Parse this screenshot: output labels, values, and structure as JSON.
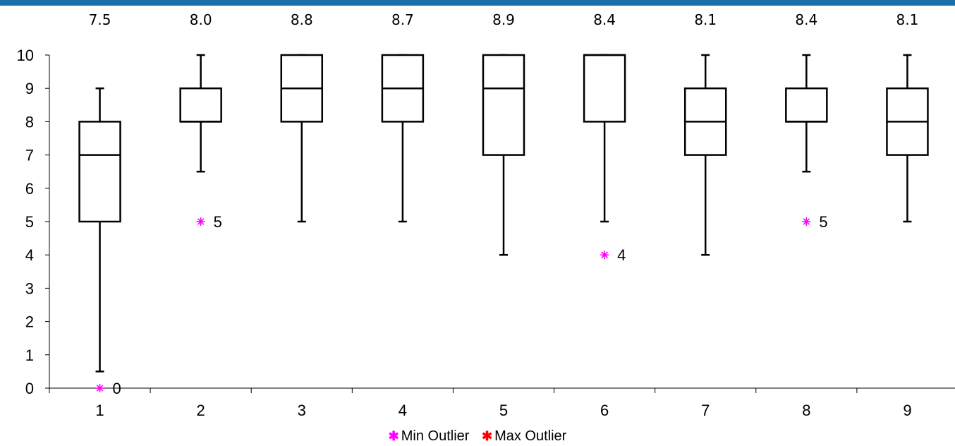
{
  "colors": {
    "top_bar": "#1b6fa8",
    "min_outlier": "#ff00ff",
    "max_outlier": "#ff0000",
    "box_stroke": "#000000"
  },
  "chart_data": {
    "type": "boxplot",
    "title": "",
    "xlabel": "",
    "ylabel": "",
    "ylim": [
      0,
      10
    ],
    "y_ticks": [
      "0",
      "1",
      "2",
      "3",
      "4",
      "5",
      "6",
      "7",
      "8",
      "9",
      "10"
    ],
    "grid": false,
    "legend_placement": "bottom",
    "legend": [
      {
        "label": "Min Outlier",
        "marker": "*",
        "color": "#ff00ff"
      },
      {
        "label": "Max Outlier",
        "marker": "*",
        "color": "#ff0000"
      }
    ],
    "categories": [
      "1",
      "2",
      "3",
      "4",
      "5",
      "6",
      "7",
      "8",
      "9"
    ],
    "means": [
      "7.5",
      "8.0",
      "8.8",
      "8.7",
      "8.9",
      "8.4",
      "8.1",
      "8.4",
      "8.1"
    ],
    "boxes": [
      {
        "category": "1",
        "whisker_low": 0.5,
        "q1": 5,
        "median": 7,
        "q3": 8,
        "whisker_high": 9
      },
      {
        "category": "2",
        "whisker_low": 6.5,
        "q1": 8,
        "median": 8,
        "q3": 9,
        "whisker_high": 10
      },
      {
        "category": "3",
        "whisker_low": 5,
        "q1": 8,
        "median": 9,
        "q3": 10,
        "whisker_high": 10
      },
      {
        "category": "4",
        "whisker_low": 5,
        "q1": 8,
        "median": 9,
        "q3": 10,
        "whisker_high": 10
      },
      {
        "category": "5",
        "whisker_low": 4,
        "q1": 7,
        "median": 9,
        "q3": 10,
        "whisker_high": 10
      },
      {
        "category": "6",
        "whisker_low": 5,
        "q1": 8,
        "median": 10,
        "q3": 10,
        "whisker_high": 10
      },
      {
        "category": "7",
        "whisker_low": 4,
        "q1": 7,
        "median": 8,
        "q3": 9,
        "whisker_high": 10
      },
      {
        "category": "8",
        "whisker_low": 6.5,
        "q1": 8,
        "median": 8,
        "q3": 9,
        "whisker_high": 10
      },
      {
        "category": "9",
        "whisker_low": 5,
        "q1": 7,
        "median": 8,
        "q3": 9,
        "whisker_high": 10
      }
    ],
    "min_outliers": [
      {
        "category": "1",
        "value": 0,
        "label": "0"
      },
      {
        "category": "2",
        "value": 5,
        "label": "5"
      },
      {
        "category": "6",
        "value": 4,
        "label": "4"
      },
      {
        "category": "8",
        "value": 5,
        "label": "5"
      }
    ],
    "max_outliers": []
  }
}
